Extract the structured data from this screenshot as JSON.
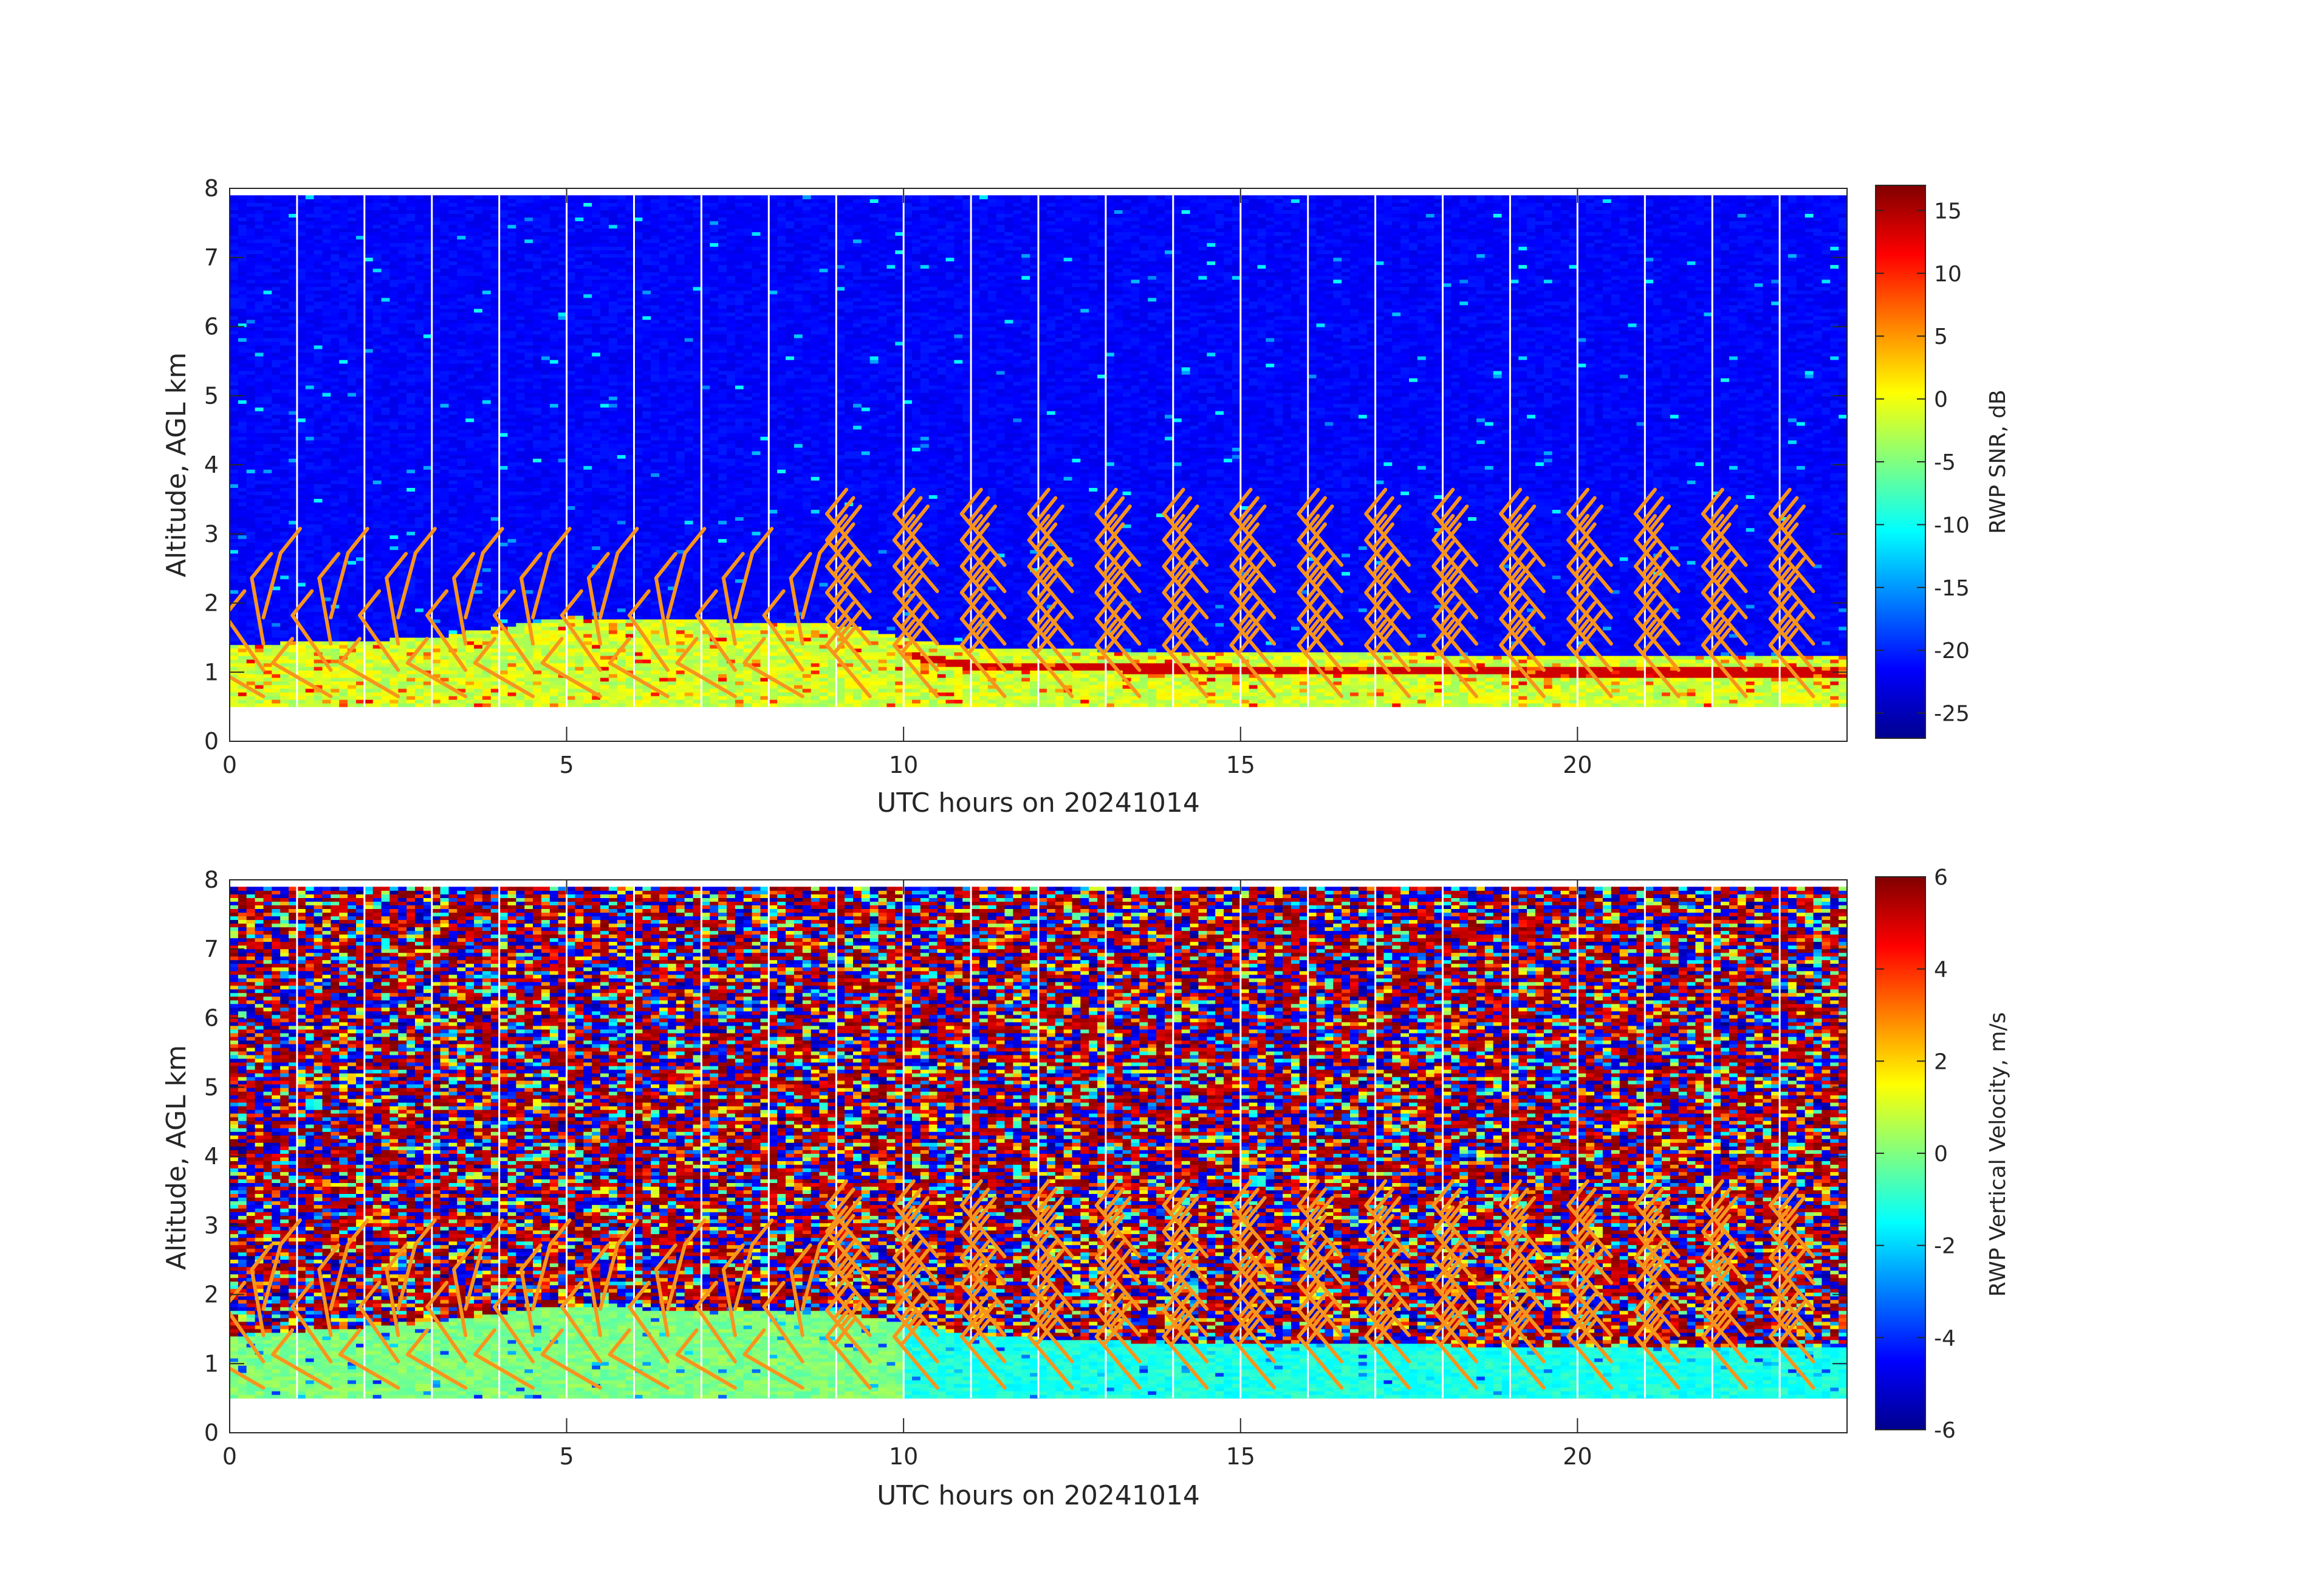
{
  "chart_data": [
    {
      "type": "heatmap",
      "xlabel": "UTC hours on 20241014",
      "ylabel": "Altitude, AGL km",
      "xlim": [
        0,
        24
      ],
      "ylim": [
        0,
        8
      ],
      "xticks": [
        "0",
        "5",
        "10",
        "15",
        "20"
      ],
      "yticks": [
        "0",
        "1",
        "2",
        "3",
        "4",
        "5",
        "6",
        "7",
        "8"
      ],
      "data_altitude_range_km": [
        0.5,
        7.9
      ],
      "colorbar": {
        "label": "RWP SNR, dB",
        "range": [
          -27,
          17
        ],
        "ticks": [
          "15",
          "10",
          "5",
          "0",
          "-5",
          "-10",
          "-15",
          "-20",
          "-25"
        ],
        "colormap": "jet"
      },
      "boundary_layer_top_km": [
        {
          "x": 0,
          "y": 1.4
        },
        {
          "x": 3,
          "y": 1.5
        },
        {
          "x": 5,
          "y": 1.8
        },
        {
          "x": 7,
          "y": 1.75
        },
        {
          "x": 9,
          "y": 1.7
        },
        {
          "x": 10,
          "y": 1.5
        },
        {
          "x": 11,
          "y": 1.35
        },
        {
          "x": 14,
          "y": 1.3
        },
        {
          "x": 20,
          "y": 1.25
        },
        {
          "x": 24,
          "y": 1.25
        }
      ],
      "wind_barbs": "hourly profiles 0.5–2.8 km AGL",
      "barb_color": "#f7941d"
    },
    {
      "type": "heatmap",
      "xlabel": "UTC hours on 20241014",
      "ylabel": "Altitude, AGL km",
      "xlim": [
        0,
        24
      ],
      "ylim": [
        0,
        8
      ],
      "xticks": [
        "0",
        "5",
        "10",
        "15",
        "20"
      ],
      "yticks": [
        "0",
        "1",
        "2",
        "3",
        "4",
        "5",
        "6",
        "7",
        "8"
      ],
      "data_altitude_range_km": [
        0.5,
        7.9
      ],
      "colorbar": {
        "label": "RWP Vertical Velocity, m/s",
        "range": [
          -6,
          6
        ],
        "ticks": [
          "6",
          "4",
          "2",
          "0",
          "-2",
          "-4",
          "-6"
        ],
        "colormap": "jet"
      },
      "boundary_layer_top_km": [
        {
          "x": 0,
          "y": 1.4
        },
        {
          "x": 3,
          "y": 1.6
        },
        {
          "x": 5,
          "y": 1.85
        },
        {
          "x": 7,
          "y": 1.75
        },
        {
          "x": 9,
          "y": 1.75
        },
        {
          "x": 10,
          "y": 1.6
        },
        {
          "x": 11,
          "y": 1.4
        },
        {
          "x": 14,
          "y": 1.3
        },
        {
          "x": 20,
          "y": 1.25
        },
        {
          "x": 24,
          "y": 1.25
        }
      ],
      "wind_barbs": "hourly profiles 0.5–2.8 km AGL",
      "barb_color": "#f7941d"
    }
  ]
}
